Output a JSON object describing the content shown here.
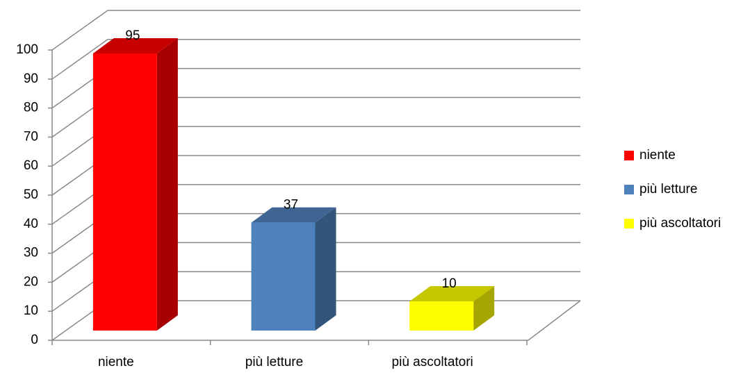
{
  "chart_data": {
    "type": "bar3d",
    "categories": [
      "niente",
      "più letture",
      "più ascoltatori"
    ],
    "values": [
      95,
      37,
      10
    ],
    "colors": [
      "#ff0000",
      "#4f81bd",
      "#ffff00"
    ],
    "ylim": [
      0,
      100
    ],
    "yticks": [
      0,
      10,
      20,
      30,
      40,
      50,
      60,
      70,
      80,
      90,
      100
    ],
    "grid": true,
    "legend": "right"
  }
}
